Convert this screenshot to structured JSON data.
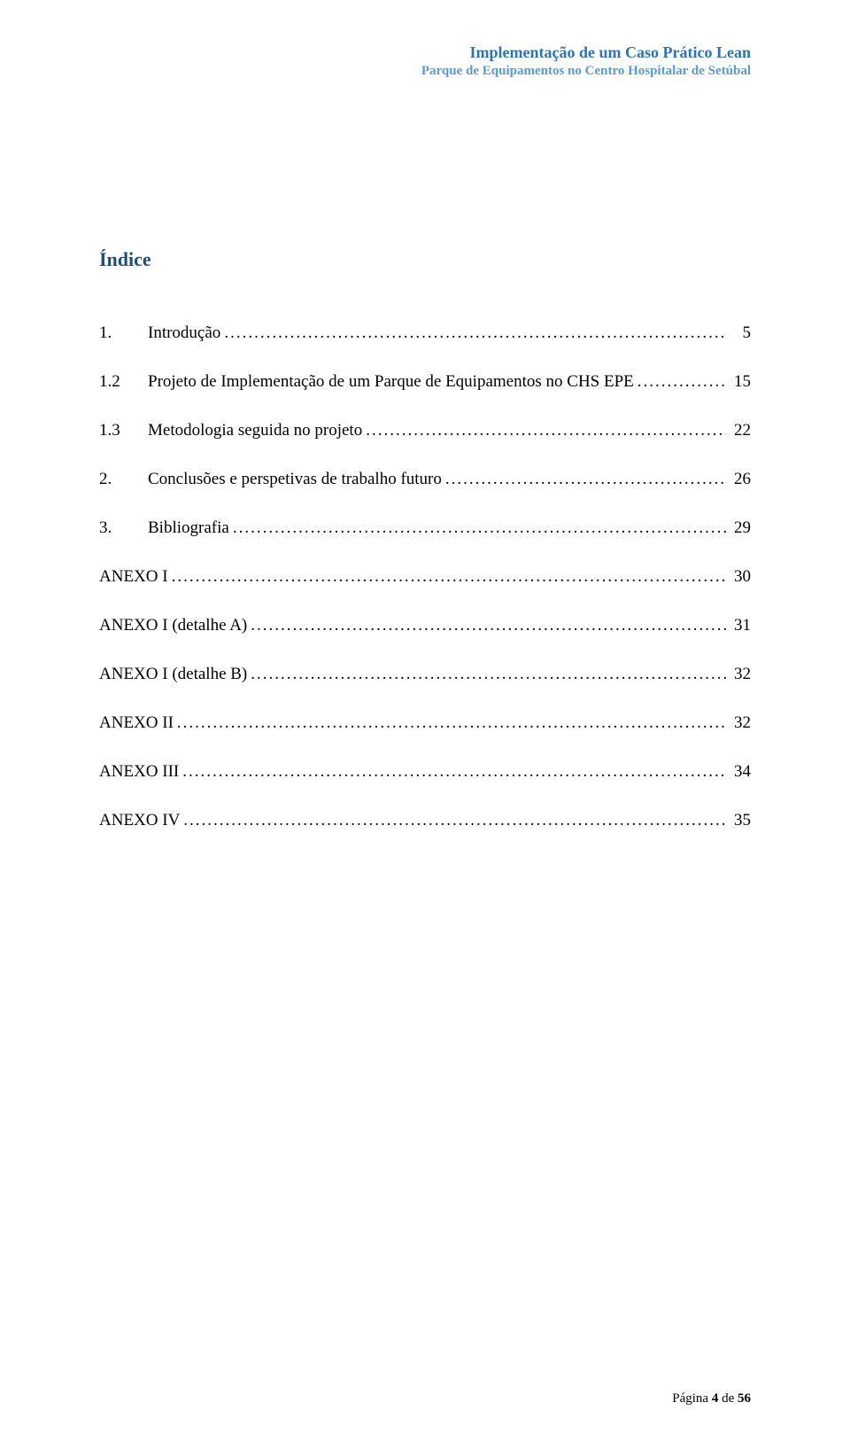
{
  "header": {
    "line1_text": "Implementação de um Caso Prático Lean",
    "line1_color": "#2e74b5",
    "line2_text": "Parque de Equipamentos no Centro Hospitalar de Setúbal",
    "line2_color": "#5b9bd5"
  },
  "toc": {
    "title": "Índice",
    "title_color": "#1f4e79",
    "entries": [
      {
        "num": "1.",
        "label": "Introdução",
        "page": "5",
        "indent": true
      },
      {
        "num": "1.2",
        "label": "Projeto de Implementação de um Parque de Equipamentos no CHS EPE",
        "page": "15",
        "indent": true
      },
      {
        "num": "1.3",
        "label": "Metodologia seguida no projeto",
        "page": "22",
        "indent": true
      },
      {
        "num": "2.",
        "label": "Conclusões e perspetivas de trabalho futuro",
        "page": "26",
        "indent": true
      },
      {
        "num": "3.",
        "label": "Bibliografia",
        "page": "29",
        "indent": true
      },
      {
        "num": "",
        "label": "ANEXO I",
        "page": "30",
        "indent": false
      },
      {
        "num": "",
        "label": "ANEXO I (detalhe A)",
        "page": "31",
        "indent": false
      },
      {
        "num": "",
        "label": "ANEXO I (detalhe B)",
        "page": "32",
        "indent": false
      },
      {
        "num": "",
        "label": "ANEXO II",
        "page": "32",
        "indent": false
      },
      {
        "num": "",
        "label": "ANEXO III",
        "page": "34",
        "indent": false
      },
      {
        "num": "",
        "label": "ANEXO IV",
        "page": "35",
        "indent": false
      }
    ]
  },
  "footer": {
    "prefix": "Página ",
    "current": "4",
    "sep": " de ",
    "total": "56"
  },
  "colors": {
    "text": "#000000",
    "background": "#ffffff"
  }
}
